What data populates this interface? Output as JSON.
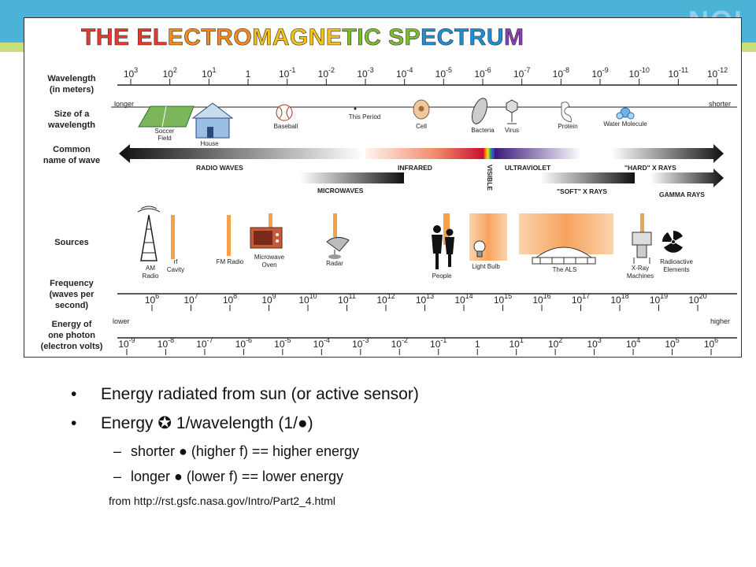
{
  "header": {
    "corner_mark": "NOI"
  },
  "diagram": {
    "title": "THE ELECTROMAGNETIC SPECTRUM",
    "title_colors": [
      "#e53a2e",
      "#f58b1f",
      "#f3c21b",
      "#7bbf2e",
      "#1e8ed6",
      "#8a3fb8"
    ],
    "rows": {
      "wavelength": "Wavelength (in meters)",
      "size": "Size of a wavelength",
      "common": "Common name of wave",
      "sources": "Sources",
      "frequency": "Frequency (waves per second)",
      "energy": "Energy of one photon (electron volts)"
    },
    "wavelength_ticks": [
      {
        "b": "10",
        "e": "3"
      },
      {
        "b": "10",
        "e": "2"
      },
      {
        "b": "10",
        "e": "1"
      },
      {
        "b": "1",
        "e": ""
      },
      {
        "b": "10",
        "e": "-1"
      },
      {
        "b": "10",
        "e": "-2"
      },
      {
        "b": "10",
        "e": "-3"
      },
      {
        "b": "10",
        "e": "-4"
      },
      {
        "b": "10",
        "e": "-5"
      },
      {
        "b": "10",
        "e": "-6"
      },
      {
        "b": "10",
        "e": "-7"
      },
      {
        "b": "10",
        "e": "-8"
      },
      {
        "b": "10",
        "e": "-9"
      },
      {
        "b": "10",
        "e": "-10"
      },
      {
        "b": "10",
        "e": "-11"
      },
      {
        "b": "10",
        "e": "-12"
      }
    ],
    "size_labels": {
      "longer": "longer",
      "shorter": "shorter"
    },
    "size_objects": [
      "Soccer Field",
      "House",
      "Baseball",
      "This Period",
      "Cell",
      "Bacteria",
      "Virus",
      "Protein",
      "Water Molecule"
    ],
    "wave_names": [
      "RADIO WAVES",
      "MICROWAVES",
      "INFRARED",
      "VISIBLE",
      "ULTRAVIOLET",
      "\"SOFT\" X RAYS",
      "\"HARD\" X RAYS",
      "GAMMA RAYS"
    ],
    "sources": [
      "AM Radio",
      "rf Cavity",
      "FM Radio",
      "Microwave Oven",
      "Radar",
      "People",
      "Light Bulb",
      "The ALS",
      "X-Ray Machines",
      "Radioactive Elements"
    ],
    "frequency_ticks": [
      {
        "b": "10",
        "e": "6"
      },
      {
        "b": "10",
        "e": "7"
      },
      {
        "b": "10",
        "e": "8"
      },
      {
        "b": "10",
        "e": "9"
      },
      {
        "b": "10",
        "e": "10"
      },
      {
        "b": "10",
        "e": "11"
      },
      {
        "b": "10",
        "e": "12"
      },
      {
        "b": "10",
        "e": "13"
      },
      {
        "b": "10",
        "e": "14"
      },
      {
        "b": "10",
        "e": "15"
      },
      {
        "b": "10",
        "e": "16"
      },
      {
        "b": "10",
        "e": "17"
      },
      {
        "b": "10",
        "e": "18"
      },
      {
        "b": "10",
        "e": "19"
      },
      {
        "b": "10",
        "e": "20"
      }
    ],
    "energy_labels": {
      "lower": "lower",
      "higher": "higher"
    },
    "energy_ticks": [
      {
        "b": "10",
        "e": "-9"
      },
      {
        "b": "10",
        "e": "-8"
      },
      {
        "b": "10",
        "e": "-7"
      },
      {
        "b": "10",
        "e": "-6"
      },
      {
        "b": "10",
        "e": "-5"
      },
      {
        "b": "10",
        "e": "-4"
      },
      {
        "b": "10",
        "e": "-3"
      },
      {
        "b": "10",
        "e": "-2"
      },
      {
        "b": "10",
        "e": "-1"
      },
      {
        "b": "1",
        "e": ""
      },
      {
        "b": "10",
        "e": "1"
      },
      {
        "b": "10",
        "e": "2"
      },
      {
        "b": "10",
        "e": "3"
      },
      {
        "b": "10",
        "e": "4"
      },
      {
        "b": "10",
        "e": "5"
      },
      {
        "b": "10",
        "e": "6"
      }
    ]
  },
  "bullets": {
    "b1": "Energy radiated from sun (or active sensor)",
    "b2_pre": "Energy ",
    "b2_sym": "✪",
    "b2_post": " 1/wavelength (1/",
    "b2_end": ")",
    "b3_pre": "shorter ",
    "b3_post": " (higher f) == higher energy",
    "b4_pre": "longer ",
    "b4_post": " (lower f) == lower energy",
    "source": "from http://rst.gsfc.nasa.gov/Intro/Part2_4.html"
  }
}
